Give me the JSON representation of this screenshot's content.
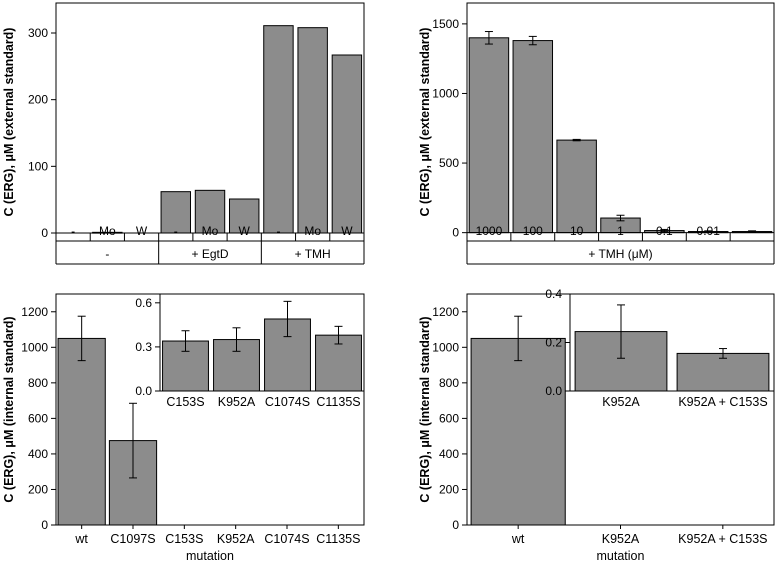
{
  "chart_data": [
    {
      "id": "A",
      "type": "bar",
      "ylabel": "C (ERG), μM (external standard)",
      "ylim": [
        -12,
        345
      ],
      "yticks": [
        0,
        100,
        200,
        300
      ],
      "categories": [
        "-",
        "Mo",
        "W",
        "-",
        "Mo",
        "W",
        "-",
        "Mo",
        "W"
      ],
      "groups": [
        {
          "label": "-",
          "size": 3
        },
        {
          "label": "+ EgtD",
          "size": 3
        },
        {
          "label": "+ TMH",
          "size": 3
        }
      ],
      "values": [
        0,
        1,
        0,
        62,
        64,
        51,
        311,
        308,
        267
      ]
    },
    {
      "id": "B",
      "type": "bar",
      "ylabel": "C (ERG), μM (external standard)",
      "ylim": [
        -60,
        1650
      ],
      "yticks": [
        0,
        500,
        1000,
        1500
      ],
      "categories": [
        "1000",
        "100",
        "10",
        "1",
        "0.1",
        "0.01",
        "-"
      ],
      "group_label": "+ TMH (μM)",
      "values": [
        1400,
        1380,
        665,
        105,
        15,
        8,
        8
      ],
      "errors": [
        45,
        30,
        5,
        20,
        8,
        5,
        5
      ]
    },
    {
      "id": "C",
      "type": "bar",
      "ylabel": "C (ERG), μM (internal standard)",
      "xlabel": "mutation",
      "ylim": [
        0,
        1300
      ],
      "yticks": [
        0,
        200,
        400,
        600,
        800,
        1000,
        1200
      ],
      "categories": [
        "wt",
        "C1097S",
        "C153S",
        "K952A",
        "C1074S",
        "C1135S"
      ],
      "values": [
        1050,
        475,
        0,
        0,
        0,
        0
      ],
      "errors": [
        125,
        210,
        0,
        0,
        0,
        0
      ],
      "inset": {
        "type": "bar",
        "ylim": [
          0,
          0.66
        ],
        "yticks": [
          0.0,
          0.3,
          0.6
        ],
        "yticklabels": [
          "0.0",
          "0.3",
          "0.6"
        ],
        "categories": [
          "C153S",
          "K952A",
          "C1074S",
          "C1135S"
        ],
        "values": [
          0.34,
          0.35,
          0.49,
          0.38
        ],
        "errors": [
          0.07,
          0.08,
          0.12,
          0.06
        ]
      }
    },
    {
      "id": "D",
      "type": "bar",
      "ylabel": "C (ERG), μM (internal standard)",
      "xlabel": "mutation",
      "ylim": [
        0,
        1300
      ],
      "yticks": [
        0,
        200,
        400,
        600,
        800,
        1000,
        1200
      ],
      "categories": [
        "wt",
        "K952A",
        "K952A + C153S"
      ],
      "values": [
        1050,
        0,
        0
      ],
      "errors": [
        125,
        0,
        0
      ],
      "inset": {
        "type": "bar",
        "ylim": [
          0,
          0.4
        ],
        "yticks": [
          0.0,
          0.2,
          0.4
        ],
        "yticklabels": [
          "0.0",
          "0.2",
          "0.4"
        ],
        "categories": [
          "K952A",
          "K952A + C153S"
        ],
        "values": [
          0.245,
          0.155
        ],
        "errors": [
          0.11,
          0.02
        ]
      }
    }
  ]
}
